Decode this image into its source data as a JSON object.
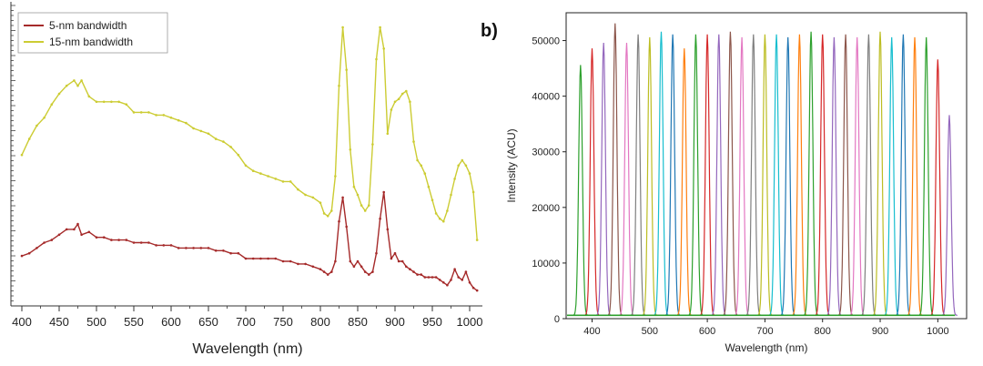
{
  "chart_data": [
    {
      "type": "line",
      "xlabel": "Wavelength (nm)",
      "ylabel": "",
      "xlim": [
        390,
        1015
      ],
      "ylim": [
        0,
        100
      ],
      "x_ticks": [
        400,
        450,
        500,
        550,
        600,
        650,
        700,
        750,
        800,
        850,
        900,
        950,
        1000
      ],
      "y_tick_count": 60,
      "legend_position": "top-left",
      "series": [
        {
          "name": "5-nm bandwidth",
          "color": "#a52a2a",
          "x": [
            400,
            410,
            420,
            430,
            440,
            450,
            460,
            470,
            475,
            480,
            490,
            500,
            510,
            520,
            530,
            540,
            550,
            560,
            570,
            580,
            590,
            600,
            610,
            620,
            630,
            640,
            650,
            660,
            670,
            680,
            690,
            700,
            710,
            720,
            730,
            740,
            750,
            760,
            770,
            780,
            790,
            800,
            805,
            810,
            815,
            820,
            825,
            830,
            835,
            840,
            845,
            850,
            855,
            860,
            865,
            870,
            875,
            880,
            885,
            890,
            895,
            900,
            905,
            910,
            915,
            920,
            925,
            930,
            935,
            940,
            945,
            950,
            955,
            960,
            965,
            970,
            975,
            980,
            985,
            990,
            995,
            1000,
            1005,
            1010
          ],
          "values": [
            14,
            15,
            17,
            19,
            20,
            22,
            24,
            24,
            26,
            22,
            23,
            21,
            21,
            20,
            20,
            20,
            19,
            19,
            19,
            18,
            18,
            18,
            17,
            17,
            17,
            17,
            17,
            16,
            16,
            15,
            15,
            13,
            13,
            13,
            13,
            13,
            12,
            12,
            11,
            11,
            10,
            9,
            8,
            7,
            8,
            12,
            27,
            36,
            25,
            12,
            10,
            12,
            10,
            8,
            7,
            8,
            15,
            28,
            38,
            24,
            13,
            15,
            12,
            12,
            10,
            9,
            8,
            7,
            7,
            6,
            6,
            6,
            6,
            5,
            4,
            3,
            5,
            9,
            6,
            5,
            8,
            4,
            2,
            1
          ]
        },
        {
          "name": "15-nm bandwidth",
          "color": "#cccc33",
          "x": [
            400,
            410,
            420,
            430,
            440,
            450,
            460,
            470,
            475,
            480,
            490,
            500,
            510,
            520,
            530,
            540,
            550,
            560,
            570,
            580,
            590,
            600,
            610,
            620,
            630,
            640,
            650,
            660,
            670,
            680,
            690,
            700,
            710,
            720,
            730,
            740,
            750,
            760,
            770,
            780,
            790,
            800,
            805,
            810,
            815,
            820,
            825,
            830,
            835,
            840,
            845,
            850,
            855,
            860,
            865,
            870,
            875,
            880,
            885,
            890,
            895,
            900,
            905,
            910,
            915,
            920,
            925,
            930,
            935,
            940,
            945,
            950,
            955,
            960,
            965,
            970,
            975,
            980,
            985,
            990,
            995,
            1000,
            1005,
            1010
          ],
          "values": [
            52,
            58,
            63,
            66,
            71,
            75,
            78,
            80,
            78,
            80,
            74,
            72,
            72,
            72,
            72,
            71,
            68,
            68,
            68,
            67,
            67,
            66,
            65,
            64,
            62,
            61,
            60,
            58,
            57,
            55,
            52,
            48,
            46,
            45,
            44,
            43,
            42,
            42,
            39,
            37,
            36,
            34,
            30,
            29,
            31,
            44,
            78,
            100,
            84,
            54,
            40,
            37,
            33,
            31,
            33,
            56,
            88,
            100,
            92,
            60,
            69,
            72,
            73,
            75,
            76,
            72,
            57,
            50,
            48,
            45,
            40,
            35,
            30,
            28,
            27,
            31,
            37,
            43,
            48,
            50,
            48,
            45,
            38,
            20
          ]
        }
      ]
    },
    {
      "type": "line",
      "panel_label": "b)",
      "xlabel": "Wavelength (nm)",
      "ylabel": "Intensity (ACU)",
      "xlim": [
        355,
        1050
      ],
      "ylim": [
        0,
        55000
      ],
      "x_ticks": [
        400,
        500,
        600,
        700,
        800,
        900,
        1000
      ],
      "y_ticks": [
        0,
        10000,
        20000,
        30000,
        40000,
        50000
      ],
      "peak_colors": [
        "#2ca02c",
        "#d62728",
        "#9467bd",
        "#8c564b",
        "#e377c2",
        "#7f7f7f",
        "#bcbd22",
        "#17becf",
        "#1f77b4",
        "#ff7f0e"
      ],
      "series": [
        {
          "x": [
            380,
            400,
            420,
            440,
            460,
            480,
            500,
            520,
            540,
            560,
            580,
            600,
            620,
            640,
            660,
            680,
            700,
            720,
            740,
            760,
            780,
            800,
            820,
            840,
            860,
            880,
            900,
            920,
            940,
            960,
            980,
            1000,
            1020
          ],
          "values": [
            45000,
            48000,
            49000,
            52500,
            49000,
            50500,
            50000,
            51000,
            50500,
            48000,
            50500,
            50500,
            50500,
            51000,
            50000,
            50500,
            50500,
            50500,
            50000,
            50500,
            51000,
            50500,
            50000,
            50500,
            50000,
            50500,
            51000,
            50000,
            50500,
            50000,
            50000,
            46000,
            36000
          ]
        }
      ]
    }
  ]
}
